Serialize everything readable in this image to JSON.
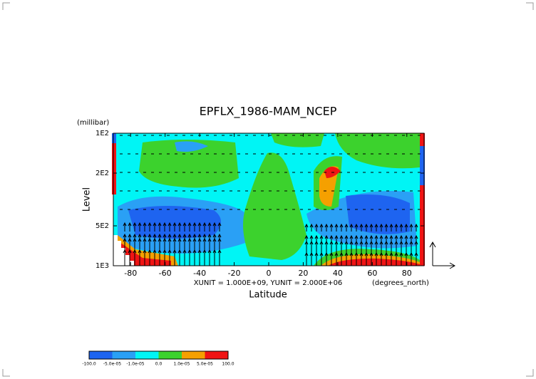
{
  "chart_data": {
    "type": "contour",
    "title": "EPFLX_1986-MAM_NCEP",
    "ylabel": "Level",
    "yunit": "(millibar)",
    "xlabel": "Latitude",
    "xunit": "(degrees_north)",
    "note": "XUNIT = 1.000E+09, YUNIT = 2.000E+06",
    "xlim": [
      -90,
      90
    ],
    "xticks": [
      -80,
      -60,
      -40,
      -20,
      0,
      20,
      40,
      60,
      80
    ],
    "ylim": [
      100,
      1000
    ],
    "ylog": true,
    "yticks": [
      {
        "value": 100,
        "label": "1E2"
      },
      {
        "value": 200,
        "label": "2E2"
      },
      {
        "value": 500,
        "label": "5E2"
      },
      {
        "value": 1000,
        "label": "1E3"
      }
    ],
    "levels": [
      {
        "value": -100,
        "label": "-100.0"
      },
      {
        "value": -5e-05,
        "label": "-5.0e-05"
      },
      {
        "value": -1e-05,
        "label": "-1.0e-05"
      },
      {
        "value": 0,
        "label": "0.0"
      },
      {
        "value": 1e-05,
        "label": "1.0e-05"
      },
      {
        "value": 5e-05,
        "label": "5.0e-05"
      },
      {
        "value": 100,
        "label": "100.0"
      }
    ],
    "colors": [
      "#1e64f0",
      "#2aa0f5",
      "#00f5f5",
      "#3cd22d",
      "#f5a000",
      "#f01414"
    ]
  }
}
